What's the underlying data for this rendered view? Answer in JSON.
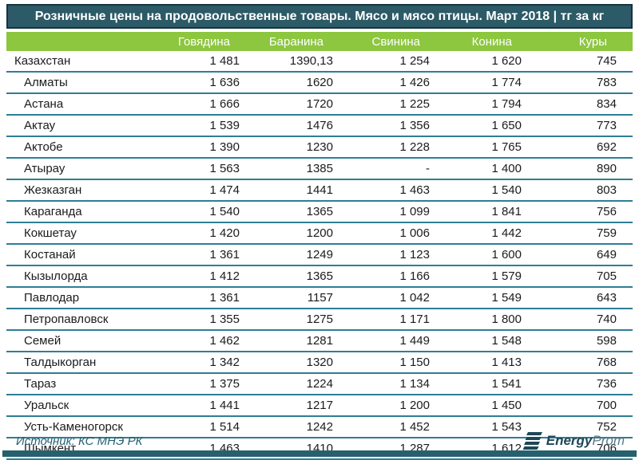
{
  "title": "Розничные цены на продовольственные товары. Мясо и мясо птицы. Март 2018 | тг за кг",
  "chart_data": {
    "type": "table",
    "title": "Розничные цены на продовольственные товары. Мясо и мясо птицы. Март 2018 | тг за кг",
    "unit": "тг за кг",
    "columns": [
      "Говядина",
      "Баранина",
      "Свинина",
      "Конина",
      "Куры"
    ],
    "rows": [
      {
        "name": "Казахстан",
        "indent": false,
        "values": [
          "1 481",
          "1390,13",
          "1 254",
          "1 620",
          "745"
        ]
      },
      {
        "name": "Алматы",
        "indent": true,
        "values": [
          "1 636",
          "1620",
          "1 426",
          "1 774",
          "783"
        ]
      },
      {
        "name": "Астана",
        "indent": true,
        "values": [
          "1 666",
          "1720",
          "1 225",
          "1 794",
          "834"
        ]
      },
      {
        "name": "Актау",
        "indent": true,
        "values": [
          "1 539",
          "1476",
          "1 356",
          "1 650",
          "773"
        ]
      },
      {
        "name": "Актобе",
        "indent": true,
        "values": [
          "1 390",
          "1230",
          "1 228",
          "1 765",
          "692"
        ]
      },
      {
        "name": "Атырау",
        "indent": true,
        "values": [
          "1 563",
          "1385",
          "-",
          "1 400",
          "890"
        ]
      },
      {
        "name": "Жезказган",
        "indent": true,
        "values": [
          "1 474",
          "1441",
          "1 463",
          "1 540",
          "803"
        ]
      },
      {
        "name": "Караганда",
        "indent": true,
        "values": [
          "1 540",
          "1365",
          "1 099",
          "1 841",
          "756"
        ]
      },
      {
        "name": "Кокшетау",
        "indent": true,
        "values": [
          "1 420",
          "1200",
          "1 006",
          "1 442",
          "759"
        ]
      },
      {
        "name": "Костанай",
        "indent": true,
        "values": [
          "1 361",
          "1249",
          "1 123",
          "1 600",
          "649"
        ]
      },
      {
        "name": "Кызылорда",
        "indent": true,
        "values": [
          "1 412",
          "1365",
          "1 166",
          "1 579",
          "705"
        ]
      },
      {
        "name": "Павлодар",
        "indent": true,
        "values": [
          "1 361",
          "1157",
          "1 042",
          "1 549",
          "643"
        ]
      },
      {
        "name": "Петропавловск",
        "indent": true,
        "values": [
          "1 355",
          "1275",
          "1 171",
          "1 800",
          "740"
        ]
      },
      {
        "name": "Семей",
        "indent": true,
        "values": [
          "1 462",
          "1281",
          "1 449",
          "1 548",
          "598"
        ]
      },
      {
        "name": "Талдыкорган",
        "indent": true,
        "values": [
          "1 342",
          "1320",
          "1 150",
          "1 413",
          "768"
        ]
      },
      {
        "name": "Тараз",
        "indent": true,
        "values": [
          "1 375",
          "1224",
          "1 134",
          "1 541",
          "736"
        ]
      },
      {
        "name": "Уральск",
        "indent": true,
        "values": [
          "1 441",
          "1217",
          "1 200",
          "1 450",
          "700"
        ]
      },
      {
        "name": "Усть-Каменогорск",
        "indent": true,
        "values": [
          "1 514",
          "1242",
          "1 452",
          "1 543",
          "752"
        ]
      },
      {
        "name": "Шымкент",
        "indent": true,
        "values": [
          "1 463",
          "1410",
          "1 287",
          "1 612",
          "706"
        ]
      }
    ]
  },
  "footer": {
    "source": "Источник: КС МНЭ РК",
    "logo_bold": "Energy",
    "logo_light": "Prom"
  },
  "colors": {
    "title_bg": "#2C5A67",
    "title_border": "#17333E",
    "header_green": "#8DC63F",
    "row_separator": "#2F7E95",
    "footer_teal": "#26616F",
    "bottom_bar": "#26606F"
  }
}
